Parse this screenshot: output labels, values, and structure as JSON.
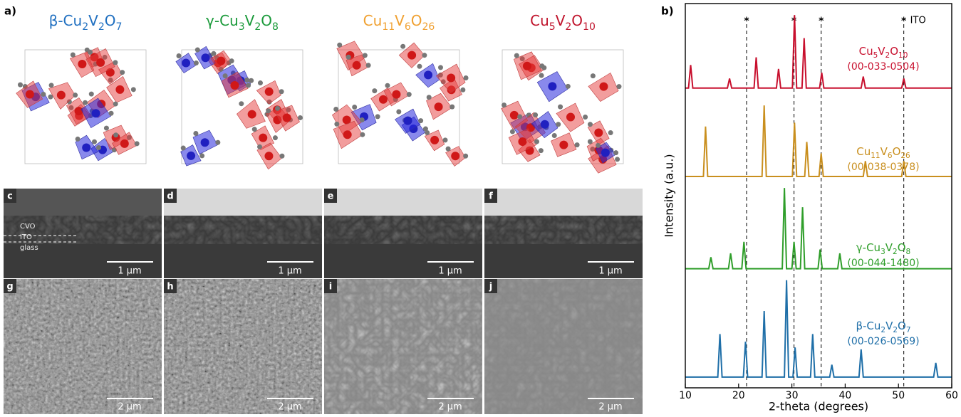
{
  "panel_a": {
    "label": "a)",
    "structures": [
      {
        "formula": "β-Cu2V2O7",
        "color": "#1f6fc0"
      },
      {
        "formula": "γ-Cu3V2O8",
        "color": "#1a9a3a"
      },
      {
        "formula": "Cu11V6O26",
        "color": "#f0a030"
      },
      {
        "formula": "Cu5V2O10",
        "color": "#c0142c"
      }
    ]
  },
  "sem": {
    "cross_sections": [
      {
        "label": "c",
        "scale": "1 μm"
      },
      {
        "label": "d",
        "scale": "1 μm"
      },
      {
        "label": "e",
        "scale": "1 μm"
      },
      {
        "label": "f",
        "scale": "1 μm"
      }
    ],
    "layer_labels": [
      "CVO",
      "ITO",
      "glass"
    ],
    "surfaces": [
      {
        "label": "g",
        "scale": "2 μm"
      },
      {
        "label": "h",
        "scale": "2 μm"
      },
      {
        "label": "i",
        "scale": "2 μm"
      },
      {
        "label": "j",
        "scale": "2 μm"
      }
    ]
  },
  "chart_data": {
    "type": "line",
    "label": "b)",
    "xlabel": "2-theta (degrees)",
    "ylabel": "Intensity (a.u.)",
    "xlim": [
      10,
      60
    ],
    "xticks": [
      10,
      20,
      30,
      40,
      50,
      60
    ],
    "ylim": [
      0,
      100
    ],
    "ref_lines": [
      21.5,
      30.4,
      35.5,
      51
    ],
    "ref_marker": "*",
    "ref_name": "ITO",
    "series": [
      {
        "name": "β-Cu2V2O7",
        "code": "(00-026-0569)",
        "color": "#1f6fa8",
        "x": [
          10,
          16.1,
          16.5,
          16.9,
          20.9,
          21.3,
          21.7,
          24.4,
          24.8,
          25.2,
          28.6,
          29,
          29.4,
          30.2,
          30.6,
          31,
          33.5,
          33.9,
          34.3,
          37.1,
          37.5,
          37.9,
          42.6,
          43,
          43.4,
          56.6,
          57,
          57.4,
          60
        ],
        "values": [
          2.8,
          2.8,
          14,
          2.8,
          2.8,
          12,
          2.8,
          2.8,
          20,
          2.8,
          2.8,
          28,
          2.8,
          2.8,
          10.5,
          2.8,
          2.8,
          14,
          2.8,
          2.8,
          6,
          2.8,
          2.8,
          10,
          2.8,
          2.8,
          6.5,
          2.8,
          2.8
        ]
      },
      {
        "name": "γ-Cu3V2O8",
        "code": "(00-044-1480)",
        "color": "#2f9e2a",
        "x": [
          10,
          14.4,
          14.8,
          15.2,
          18.1,
          18.5,
          18.9,
          20.6,
          21,
          21.4,
          28.2,
          28.6,
          29,
          30,
          30.4,
          30.8,
          31.6,
          32,
          32.4,
          34.9,
          35.3,
          35.7,
          38.6,
          39,
          39.4,
          60
        ],
        "values": [
          31,
          31,
          34,
          31,
          31,
          35,
          31,
          31,
          38,
          31,
          31,
          52,
          31,
          31,
          38,
          31,
          31,
          47,
          31,
          31,
          36,
          31,
          31,
          35,
          31,
          31
        ]
      },
      {
        "name": "Cu11V6O26",
        "code": "(00-038-0378)",
        "color": "#c98f1e",
        "x": [
          10,
          13.4,
          13.8,
          14.2,
          24.4,
          24.8,
          25.2,
          30.1,
          30.5,
          30.9,
          32.4,
          32.8,
          33.2,
          35.1,
          35.5,
          35.9,
          43.4,
          43.8,
          44.2,
          50.6,
          51,
          51.4,
          60
        ],
        "values": [
          55,
          55,
          68,
          55,
          55,
          73.5,
          55,
          55,
          69,
          55,
          55,
          64,
          55,
          55,
          61,
          55,
          55,
          59,
          55,
          55,
          59,
          55,
          55
        ]
      },
      {
        "name": "Cu5V2O10",
        "code": "(00-033-0504)",
        "color": "#c8102e",
        "x": [
          10,
          10.6,
          11,
          11.4,
          17.9,
          18.3,
          18.7,
          22.9,
          23.3,
          23.7,
          27.1,
          27.5,
          27.9,
          30.1,
          30.5,
          30.9,
          31.9,
          32.3,
          32.7,
          35.2,
          35.6,
          36,
          43,
          43.4,
          43.8,
          50.6,
          51,
          51.4,
          60
        ],
        "values": [
          78,
          78,
          84,
          78,
          78,
          80.5,
          78,
          78,
          86,
          78,
          78,
          83,
          78,
          78,
          97,
          78,
          78,
          91,
          78,
          78,
          82,
          78,
          78,
          81,
          78,
          78,
          80.5,
          78,
          78
        ]
      }
    ]
  }
}
